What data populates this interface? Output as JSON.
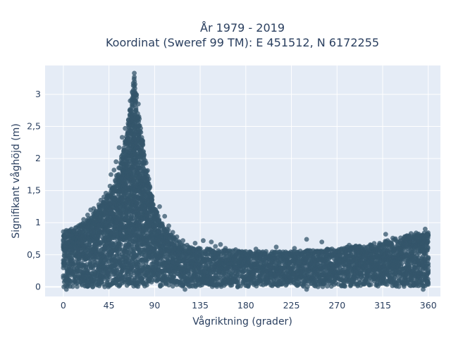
{
  "chart_data": {
    "type": "scatter",
    "title_line1": "År 1979 - 2019",
    "title_line2": "Koordinat (Sweref 99 TM): E 451512, N 6172255",
    "xlabel": "Vågriktning (grader)",
    "ylabel": "Signifikant våghöjd (m)",
    "xlim": [
      -18,
      372
    ],
    "ylim": [
      -0.15,
      3.45
    ],
    "xticks": [
      0,
      45,
      90,
      135,
      180,
      225,
      270,
      315,
      360
    ],
    "xtick_labels": [
      "0",
      "45",
      "90",
      "135",
      "180",
      "225",
      "270",
      "315",
      "360"
    ],
    "yticks": [
      0,
      0.5,
      1,
      1.5,
      2,
      2.5,
      3
    ],
    "ytick_labels": [
      "0",
      "0,5",
      "1",
      "1,5",
      "2",
      "2,5",
      "3"
    ],
    "grid": true,
    "legend": "none",
    "marker_color": "#34566b",
    "plot_bgcolor": "#e5ecf6",
    "envelope": {
      "x": [
        0,
        10,
        20,
        30,
        40,
        50,
        55,
        60,
        65,
        68,
        70,
        72,
        75,
        80,
        85,
        90,
        100,
        110,
        120,
        135,
        180,
        225,
        270,
        315,
        340,
        360
      ],
      "upper": [
        0.85,
        0.9,
        1.0,
        1.15,
        1.35,
        1.6,
        1.85,
        2.2,
        2.7,
        3.0,
        3.3,
        3.0,
        2.6,
        2.1,
        1.6,
        1.25,
        0.95,
        0.75,
        0.65,
        0.6,
        0.55,
        0.55,
        0.6,
        0.7,
        0.8,
        0.85
      ],
      "lower": [
        0.0,
        0.0,
        0.0,
        0.0,
        0.0,
        0.0,
        0.0,
        0.0,
        0.0,
        0.0,
        0.0,
        0.0,
        0.0,
        0.0,
        0.0,
        0.0,
        0.0,
        0.0,
        0.0,
        0.0,
        0.0,
        0.0,
        0.0,
        0.0,
        0.0,
        0.0
      ]
    },
    "outliers": [
      {
        "x": 70,
        "y": 3.33
      },
      {
        "x": 70,
        "y": 3.27
      },
      {
        "x": 70,
        "y": 3.13
      },
      {
        "x": 68,
        "y": 3.04
      },
      {
        "x": 72,
        "y": 2.95
      },
      {
        "x": 66,
        "y": 2.9
      },
      {
        "x": 74,
        "y": 2.85
      },
      {
        "x": 61,
        "y": 2.47
      },
      {
        "x": 58,
        "y": 2.33
      },
      {
        "x": 55,
        "y": 2.17
      },
      {
        "x": 52,
        "y": 1.95
      },
      {
        "x": 50,
        "y": 1.82
      },
      {
        "x": 47,
        "y": 1.75
      },
      {
        "x": 46,
        "y": 1.57
      },
      {
        "x": 42,
        "y": 1.46
      },
      {
        "x": 40,
        "y": 1.4
      },
      {
        "x": 37,
        "y": 1.35
      },
      {
        "x": 35,
        "y": 1.28
      },
      {
        "x": 30,
        "y": 1.22
      },
      {
        "x": 27,
        "y": 1.2
      },
      {
        "x": 24,
        "y": 1.12
      },
      {
        "x": 20,
        "y": 1.05
      },
      {
        "x": 17,
        "y": 0.97
      },
      {
        "x": 12,
        "y": 0.92
      },
      {
        "x": 8,
        "y": 0.9
      },
      {
        "x": 3,
        "y": 0.88
      },
      {
        "x": 0,
        "y": 0.86
      },
      {
        "x": 1,
        "y": 0.78
      },
      {
        "x": 95,
        "y": 1.25
      },
      {
        "x": 100,
        "y": 1.1
      },
      {
        "x": 104,
        "y": 0.95
      },
      {
        "x": 108,
        "y": 0.85
      },
      {
        "x": 112,
        "y": 0.78
      },
      {
        "x": 118,
        "y": 0.72
      },
      {
        "x": 122,
        "y": 0.65
      },
      {
        "x": 130,
        "y": 0.68
      },
      {
        "x": 138,
        "y": 0.72
      },
      {
        "x": 146,
        "y": 0.7
      },
      {
        "x": 150,
        "y": 0.63
      },
      {
        "x": 155,
        "y": 0.66
      },
      {
        "x": 160,
        "y": 0.6
      },
      {
        "x": 170,
        "y": 0.58
      },
      {
        "x": 180,
        "y": 0.55
      },
      {
        "x": 190,
        "y": 0.59
      },
      {
        "x": 200,
        "y": 0.55
      },
      {
        "x": 210,
        "y": 0.62
      },
      {
        "x": 220,
        "y": 0.52
      },
      {
        "x": 228,
        "y": 0.6
      },
      {
        "x": 240,
        "y": 0.74
      },
      {
        "x": 255,
        "y": 0.7
      },
      {
        "x": 260,
        "y": 0.58
      },
      {
        "x": 268,
        "y": 0.55
      },
      {
        "x": 282,
        "y": 0.65
      },
      {
        "x": 290,
        "y": 0.6
      },
      {
        "x": 300,
        "y": 0.62
      },
      {
        "x": 312,
        "y": 0.68
      },
      {
        "x": 318,
        "y": 0.82
      },
      {
        "x": 325,
        "y": 0.76
      },
      {
        "x": 333,
        "y": 0.72
      },
      {
        "x": 343,
        "y": 0.83
      },
      {
        "x": 348,
        "y": 0.84
      },
      {
        "x": 352,
        "y": 0.78
      },
      {
        "x": 357,
        "y": 0.9
      },
      {
        "x": 359,
        "y": 0.8
      },
      {
        "x": 3,
        "y": -0.04
      },
      {
        "x": 120,
        "y": -0.04
      },
      {
        "x": 240,
        "y": -0.04
      },
      {
        "x": 355,
        "y": -0.04
      }
    ]
  }
}
